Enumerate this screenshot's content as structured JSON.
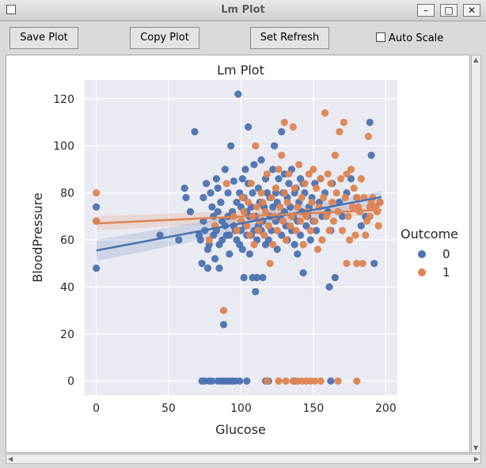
{
  "window": {
    "title": "Lm Plot"
  },
  "toolbar": {
    "save_label": "Save Plot",
    "copy_label": "Copy Plot",
    "refresh_label": "Set Refresh",
    "autoscale_label": "Auto Scale",
    "autoscale_checked": false
  },
  "colors": {
    "class0": "#4c72b0",
    "class1": "#dd8452",
    "plot_bg": "#eaeaf2"
  },
  "chart_data": {
    "type": "scatter",
    "title": "Lm Plot",
    "xlabel": "Glucose",
    "ylabel": "BloodPressure",
    "xlim": [
      -8,
      208
    ],
    "ylim": [
      -6,
      128
    ],
    "xticks": [
      0,
      50,
      100,
      150,
      200
    ],
    "yticks": [
      0,
      20,
      40,
      60,
      80,
      100,
      120
    ],
    "grid": true,
    "legend": {
      "title": "Outcome",
      "placement": "right",
      "entries": [
        "0",
        "1"
      ]
    },
    "series": [
      {
        "name": "0",
        "color": "#4c72b0",
        "points": [
          [
            0,
            48
          ],
          [
            0,
            74
          ],
          [
            0,
            68
          ],
          [
            44,
            62
          ],
          [
            57,
            60
          ],
          [
            61,
            82
          ],
          [
            62,
            78
          ],
          [
            65,
            72
          ],
          [
            68,
            106
          ],
          [
            71,
            62
          ],
          [
            72,
            60
          ],
          [
            73,
            50
          ],
          [
            74,
            68
          ],
          [
            74,
            78
          ],
          [
            75,
            64
          ],
          [
            76,
            84
          ],
          [
            77,
            48
          ],
          [
            77,
            56
          ],
          [
            78,
            58
          ],
          [
            79,
            80
          ],
          [
            80,
            74
          ],
          [
            81,
            70
          ],
          [
            81,
            62
          ],
          [
            82,
            52
          ],
          [
            83,
            64
          ],
          [
            83,
            86
          ],
          [
            84,
            72
          ],
          [
            84,
            82
          ],
          [
            85,
            58
          ],
          [
            85,
            48
          ],
          [
            86,
            76
          ],
          [
            87,
            60
          ],
          [
            87,
            68
          ],
          [
            88,
            24
          ],
          [
            89,
            66
          ],
          [
            89,
            90
          ],
          [
            90,
            62
          ],
          [
            91,
            80
          ],
          [
            91,
            70
          ],
          [
            92,
            62
          ],
          [
            92,
            54
          ],
          [
            93,
            100
          ],
          [
            94,
            72
          ],
          [
            95,
            66
          ],
          [
            95,
            85
          ],
          [
            96,
            64
          ],
          [
            97,
            60
          ],
          [
            97,
            76
          ],
          [
            98,
            122
          ],
          [
            99,
            58
          ],
          [
            99,
            80
          ],
          [
            100,
            64
          ],
          [
            100,
            74
          ],
          [
            101,
            86
          ],
          [
            101,
            56
          ],
          [
            102,
            78
          ],
          [
            102,
            44
          ],
          [
            103,
            66
          ],
          [
            103,
            90
          ],
          [
            104,
            62
          ],
          [
            104,
            72
          ],
          [
            105,
            108
          ],
          [
            105,
            84
          ],
          [
            106,
            54
          ],
          [
            106,
            70
          ],
          [
            107,
            62
          ],
          [
            107,
            74
          ],
          [
            108,
            44
          ],
          [
            108,
            80
          ],
          [
            109,
            64
          ],
          [
            109,
            92
          ],
          [
            110,
            38
          ],
          [
            110,
            70
          ],
          [
            111,
            60
          ],
          [
            111,
            44
          ],
          [
            112,
            82
          ],
          [
            112,
            66
          ],
          [
            113,
            76
          ],
          [
            114,
            64
          ],
          [
            114,
            94
          ],
          [
            115,
            44
          ],
          [
            115,
            68
          ],
          [
            116,
            74
          ],
          [
            117,
            58
          ],
          [
            117,
            86
          ],
          [
            118,
            80
          ],
          [
            119,
            60
          ],
          [
            120,
            78
          ],
          [
            120,
            70
          ],
          [
            121,
            64
          ],
          [
            122,
            90
          ],
          [
            122,
            74
          ],
          [
            123,
            100
          ],
          [
            124,
            68
          ],
          [
            124,
            80
          ],
          [
            125,
            56
          ],
          [
            125,
            76
          ],
          [
            126,
            86
          ],
          [
            127,
            70
          ],
          [
            128,
            106
          ],
          [
            128,
            62
          ],
          [
            129,
            80
          ],
          [
            130,
            72
          ],
          [
            130,
            88
          ],
          [
            131,
            66
          ],
          [
            132,
            60
          ],
          [
            132,
            78
          ],
          [
            133,
            84
          ],
          [
            134,
            74
          ],
          [
            135,
            64
          ],
          [
            135,
            90
          ],
          [
            136,
            70
          ],
          [
            137,
            58
          ],
          [
            137,
            80
          ],
          [
            138,
            82
          ],
          [
            139,
            68
          ],
          [
            139,
            54
          ],
          [
            140,
            76
          ],
          [
            141,
            62
          ],
          [
            141,
            86
          ],
          [
            142,
            72
          ],
          [
            143,
            46
          ],
          [
            143,
            84
          ],
          [
            144,
            80
          ],
          [
            145,
            66
          ],
          [
            146,
            70
          ],
          [
            147,
            74
          ],
          [
            148,
            60
          ],
          [
            149,
            78
          ],
          [
            150,
            68
          ],
          [
            151,
            84
          ],
          [
            152,
            64
          ],
          [
            154,
            76
          ],
          [
            155,
            86
          ],
          [
            156,
            70
          ],
          [
            158,
            80
          ],
          [
            160,
            72
          ],
          [
            161,
            40
          ],
          [
            162,
            64
          ],
          [
            163,
            84
          ],
          [
            165,
            44
          ],
          [
            168,
            76
          ],
          [
            170,
            70
          ],
          [
            173,
            80
          ],
          [
            176,
            86
          ],
          [
            180,
            78
          ],
          [
            183,
            66
          ],
          [
            186,
            70
          ],
          [
            189,
            110
          ],
          [
            190,
            96
          ],
          [
            192,
            50
          ],
          [
            196,
            76
          ],
          [
            73,
            0
          ],
          [
            75,
            0
          ],
          [
            78,
            0
          ],
          [
            80,
            0
          ],
          [
            84,
            0
          ],
          [
            86,
            0
          ],
          [
            88,
            0
          ],
          [
            90,
            0
          ],
          [
            92,
            0
          ],
          [
            94,
            0
          ],
          [
            96,
            0
          ],
          [
            99,
            0
          ],
          [
            104,
            0
          ],
          [
            117,
            0
          ],
          [
            119,
            0
          ],
          [
            137,
            0
          ],
          [
            162,
            0
          ]
        ]
      },
      {
        "name": "1",
        "color": "#dd8452",
        "points": [
          [
            0,
            68
          ],
          [
            0,
            80
          ],
          [
            78,
            60
          ],
          [
            82,
            66
          ],
          [
            88,
            30
          ],
          [
            90,
            84
          ],
          [
            95,
            70
          ],
          [
            97,
            64
          ],
          [
            100,
            68
          ],
          [
            101,
            78
          ],
          [
            102,
            72
          ],
          [
            104,
            66
          ],
          [
            105,
            76
          ],
          [
            106,
            62
          ],
          [
            107,
            84
          ],
          [
            108,
            70
          ],
          [
            109,
            58
          ],
          [
            110,
            100
          ],
          [
            111,
            74
          ],
          [
            112,
            64
          ],
          [
            113,
            68
          ],
          [
            114,
            80
          ],
          [
            115,
            76
          ],
          [
            116,
            62
          ],
          [
            117,
            72
          ],
          [
            118,
            88
          ],
          [
            119,
            66
          ],
          [
            120,
            50
          ],
          [
            121,
            78
          ],
          [
            122,
            58
          ],
          [
            123,
            70
          ],
          [
            124,
            82
          ],
          [
            125,
            64
          ],
          [
            126,
            90
          ],
          [
            127,
            74
          ],
          [
            128,
            96
          ],
          [
            129,
            68
          ],
          [
            130,
            110
          ],
          [
            130,
            80
          ],
          [
            131,
            60
          ],
          [
            132,
            76
          ],
          [
            133,
            88
          ],
          [
            134,
            66
          ],
          [
            135,
            70
          ],
          [
            136,
            108
          ],
          [
            137,
            82
          ],
          [
            138,
            64
          ],
          [
            139,
            74
          ],
          [
            140,
            92
          ],
          [
            141,
            68
          ],
          [
            142,
            78
          ],
          [
            143,
            58
          ],
          [
            144,
            84
          ],
          [
            145,
            70
          ],
          [
            146,
            72
          ],
          [
            147,
            88
          ],
          [
            148,
            64
          ],
          [
            149,
            76
          ],
          [
            150,
            90
          ],
          [
            151,
            68
          ],
          [
            152,
            82
          ],
          [
            153,
            56
          ],
          [
            154,
            74
          ],
          [
            155,
            86
          ],
          [
            156,
            60
          ],
          [
            157,
            78
          ],
          [
            158,
            114
          ],
          [
            159,
            70
          ],
          [
            160,
            88
          ],
          [
            161,
            64
          ],
          [
            162,
            84
          ],
          [
            163,
            76
          ],
          [
            164,
            68
          ],
          [
            165,
            96
          ],
          [
            166,
            80
          ],
          [
            167,
            72
          ],
          [
            168,
            106
          ],
          [
            169,
            86
          ],
          [
            170,
            64
          ],
          [
            171,
            110
          ],
          [
            172,
            78
          ],
          [
            173,
            88
          ],
          [
            174,
            70
          ],
          [
            175,
            60
          ],
          [
            176,
            90
          ],
          [
            177,
            74
          ],
          [
            178,
            82
          ],
          [
            179,
            62
          ],
          [
            180,
            78
          ],
          [
            181,
            74
          ],
          [
            182,
            72
          ],
          [
            183,
            86
          ],
          [
            184,
            50
          ],
          [
            185,
            78
          ],
          [
            186,
            62
          ],
          [
            187,
            68
          ],
          [
            188,
            104
          ],
          [
            189,
            70
          ],
          [
            190,
            76
          ],
          [
            191,
            78
          ],
          [
            193,
            74
          ],
          [
            194,
            72
          ],
          [
            195,
            66
          ],
          [
            196,
            76
          ],
          [
            173,
            50
          ],
          [
            180,
            50
          ],
          [
            189,
            74
          ],
          [
            118,
            0
          ],
          [
            126,
            0
          ],
          [
            131,
            0
          ],
          [
            136,
            0
          ],
          [
            139,
            0
          ],
          [
            142,
            0
          ],
          [
            145,
            0
          ],
          [
            148,
            0
          ],
          [
            151,
            0
          ],
          [
            155,
            0
          ],
          [
            167,
            0
          ],
          [
            180,
            0
          ]
        ]
      }
    ],
    "regression": [
      {
        "name": "0",
        "color": "#4c72b0",
        "x": [
          0,
          197
        ],
        "y": [
          55.5,
          78.2
        ],
        "ci_start": 4.5,
        "ci_end": 2.5
      },
      {
        "name": "1",
        "color": "#dd8452",
        "x": [
          0,
          197
        ],
        "y": [
          67.0,
          72.8
        ],
        "ci_start": 3.0,
        "ci_end": 2.0
      }
    ]
  }
}
